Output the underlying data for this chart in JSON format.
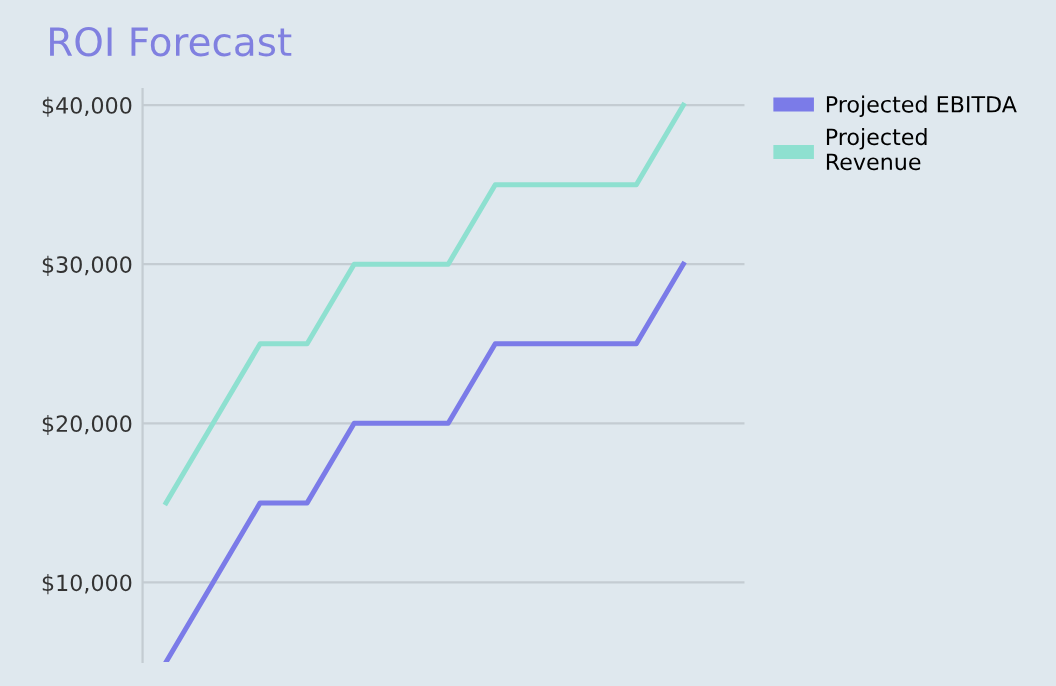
{
  "chart_data": {
    "type": "line",
    "title": "ROI Forecast",
    "categories": [
      null,
      null,
      null,
      null,
      null,
      null,
      null,
      null,
      null,
      null,
      null,
      null
    ],
    "series": [
      {
        "name": "Projected EBITDA",
        "color": "#7b7be8",
        "values": [
          5000,
          10000,
          15000,
          15000,
          20000,
          20000,
          20000,
          25000,
          25000,
          25000,
          25000,
          30000
        ]
      },
      {
        "name": "Projected Revenue",
        "color": "#8ee0d0",
        "values": [
          15000,
          20000,
          25000,
          25000,
          30000,
          30000,
          30000,
          35000,
          35000,
          35000,
          35000,
          40000
        ]
      }
    ],
    "ylim": [
      5000,
      41000
    ],
    "yticks": [
      {
        "value": 10000,
        "label": "$10,000"
      },
      {
        "value": 20000,
        "label": "$20,000"
      },
      {
        "value": 30000,
        "label": "$30,000"
      },
      {
        "value": 40000,
        "label": "$40,000"
      }
    ],
    "grid": "y",
    "legend": "top right",
    "marker": "none",
    "line_style": "solid"
  }
}
